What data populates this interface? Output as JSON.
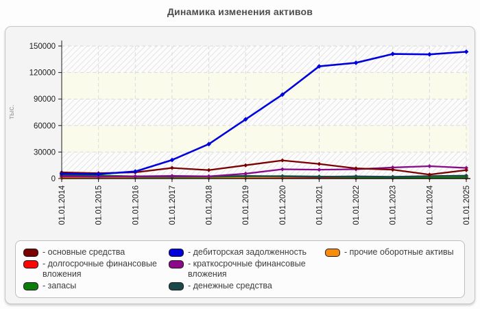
{
  "title": "Динамика изменения активов",
  "chart_data": {
    "type": "line",
    "title": "Динамика изменения активов",
    "xlabel": "",
    "ylabel": "тыс.",
    "ylim": [
      0,
      150000
    ],
    "ytick_step": 30000,
    "yticks": [
      "0",
      "30000",
      "60000",
      "90000",
      "120000",
      "150000"
    ],
    "grid": true,
    "legend_position": "bottom",
    "categories": [
      "01.01.2014",
      "01.01.2015",
      "01.01.2016",
      "01.01.2017",
      "01.01.2018",
      "01.01.2019",
      "01.01.2020",
      "01.01.2021",
      "01.01.2022",
      "01.01.2023",
      "01.01.2024",
      "01.01.2025"
    ],
    "series": [
      {
        "name": "основные средства",
        "color": "#7b0000",
        "values": [
          7000,
          6000,
          7000,
          12000,
          9500,
          15000,
          20500,
          16500,
          11500,
          10000,
          4500,
          9500
        ]
      },
      {
        "name": "долгосрочные финансовые вложения",
        "color": "#fb0505",
        "values": [
          1500,
          1200,
          800,
          600,
          500,
          500,
          500,
          500,
          400,
          400,
          400,
          400
        ]
      },
      {
        "name": "запасы",
        "color": "#0c7c0c",
        "values": [
          4300,
          3500,
          2500,
          2000,
          2000,
          2500,
          2800,
          2300,
          1500,
          1200,
          1000,
          1500
        ]
      },
      {
        "name": "дебиторская задолженность",
        "color": "#0000dd",
        "values": [
          5500,
          5000,
          8000,
          21000,
          39000,
          67000,
          95000,
          127000,
          131000,
          141000,
          140500,
          143500
        ]
      },
      {
        "name": "краткосрочные финансовые вложения",
        "color": "#8a0a8a",
        "values": [
          2500,
          2000,
          2500,
          3000,
          2500,
          5500,
          10500,
          10000,
          10500,
          12500,
          14000,
          12000
        ]
      },
      {
        "name": "денежные средства",
        "color": "#1b4848",
        "values": [
          3500,
          2500,
          2000,
          2000,
          2500,
          3000,
          2500,
          2000,
          2500,
          2000,
          2800,
          3300
        ]
      },
      {
        "name": "прочие оборотные активы",
        "color": "#f88c0a",
        "values": [
          300,
          500,
          800,
          1000,
          1200,
          1500,
          2000,
          2200,
          2000,
          1800,
          2000,
          2200
        ]
      }
    ],
    "legend_columns": [
      [
        0,
        1,
        2
      ],
      [
        3,
        4,
        5
      ],
      [
        6
      ]
    ],
    "legend_item_prefix": "- "
  }
}
